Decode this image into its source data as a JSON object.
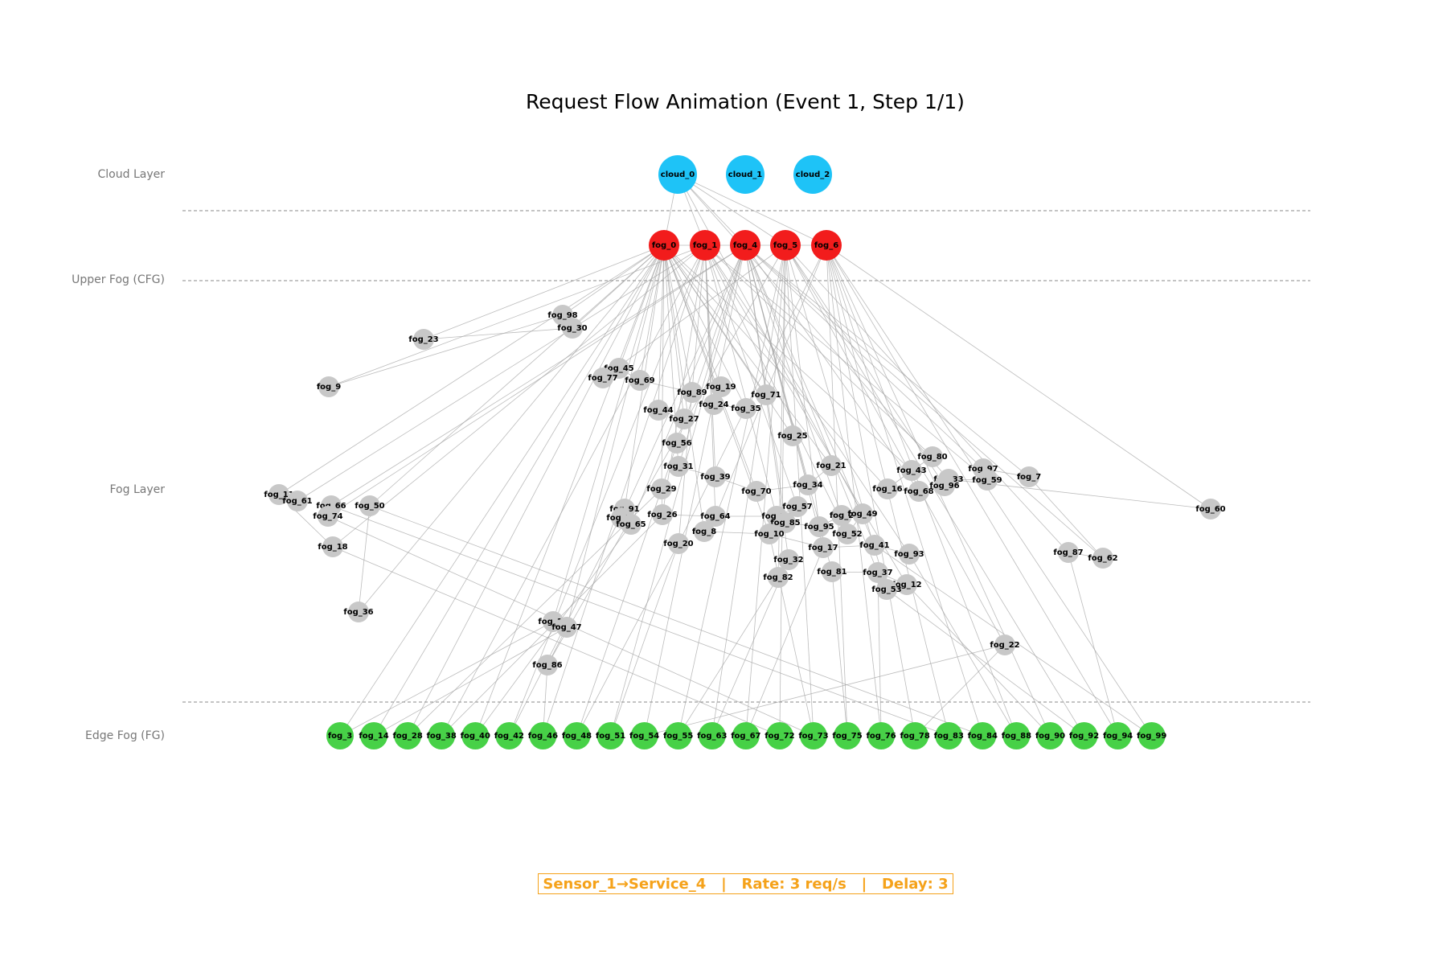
{
  "title": "Request Flow Animation (Event 1, Step 1/1)",
  "layer_labels": [
    "Cloud Layer",
    "Upper Fog (CFG)",
    "Fog Layer",
    "Edge Fog (FG)"
  ],
  "colors": {
    "cloud": "#1ec3f7",
    "upper_fog": "#f21c1c",
    "fog": "#c8c8c8",
    "edge_fog": "#47d147",
    "edge_line": "#a6a6a6",
    "info": "#f5a21a"
  },
  "nodes": {
    "cloud": [
      "cloud_0",
      "cloud_1",
      "cloud_2"
    ],
    "upper_fog": [
      "fog_0",
      "fog_1",
      "fog_4",
      "fog_5",
      "fog_6"
    ],
    "fog": [
      "fog_98",
      "fog_30",
      "fog_23",
      "fog_9",
      "fog_45",
      "fog_77",
      "fog_69",
      "fog_89",
      "fog_19",
      "fog_71",
      "fog_24",
      "fog_44",
      "fog_35",
      "fog_27",
      "fog_25",
      "fog_56",
      "fog_31",
      "fog_21",
      "fog_80",
      "fog_43",
      "fog_97",
      "fog_7",
      "fog_33",
      "fog_59",
      "fog_96",
      "fog_68",
      "fog_16",
      "fog_34",
      "fog_39",
      "fog_70",
      "fog_29",
      "fog_11",
      "fog_61",
      "fog_66",
      "fog_50",
      "fog_74",
      "fog_91",
      "fog_13",
      "fog_65",
      "fog_26",
      "fog_64",
      "fog_57",
      "fog_79",
      "fog_85",
      "fog_95",
      "fog_2",
      "fog_49",
      "fog_52",
      "fog_8",
      "fog_10",
      "fog_20",
      "fog_17",
      "fog_41",
      "fog_93",
      "fog_60",
      "fog_18",
      "fog_32",
      "fog_87",
      "fog_62",
      "fog_81",
      "fog_37",
      "fog_82",
      "fog_12",
      "fog_53",
      "fog_36",
      "fog_15",
      "fog_47",
      "fog_22",
      "fog_86"
    ],
    "edge_fog": [
      "fog_3",
      "fog_14",
      "fog_28",
      "fog_38",
      "fog_40",
      "fog_42",
      "fog_46",
      "fog_48",
      "fog_51",
      "fog_54",
      "fog_55",
      "fog_63",
      "fog_67",
      "fog_72",
      "fog_73",
      "fog_75",
      "fog_76",
      "fog_78",
      "fog_83",
      "fog_84",
      "fog_88",
      "fog_90",
      "fog_92",
      "fog_94",
      "fog_99"
    ]
  },
  "info": {
    "flow": "Sensor_1→Service_4",
    "rate": "Rate: 3 req/s",
    "delay": "Delay: 3",
    "separator": "   |   "
  }
}
